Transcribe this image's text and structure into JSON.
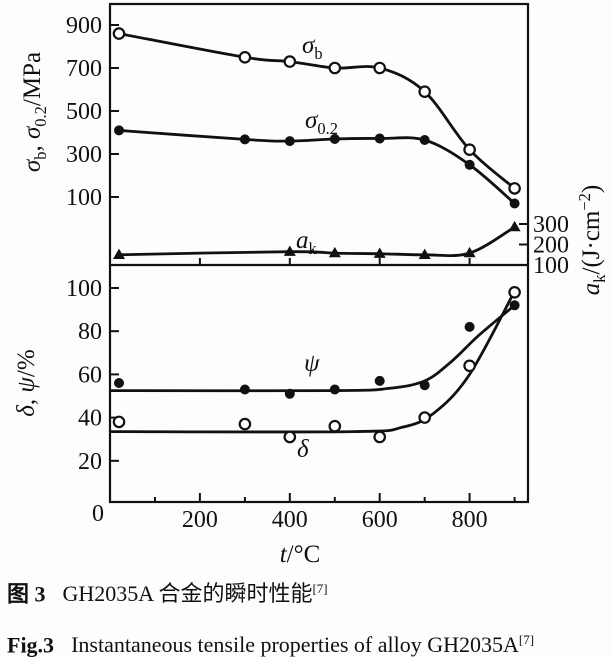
{
  "figure": {
    "caption_cn": {
      "label": "图 3",
      "text": "GH2035A 合金的瞬时性能",
      "ref": "[7]"
    },
    "caption_en": {
      "label": "Fig.3",
      "text": "Instantaneous tensile properties of alloy GH2035A",
      "ref": "[7]"
    },
    "ink_color": "#111111",
    "paper_color": "#fdfdfd"
  },
  "chart_data": [
    {
      "type": "line",
      "panel": "top",
      "xlabel_parts": [
        [
          "t",
          "i"
        ],
        [
          "/°C",
          "n"
        ]
      ],
      "ylabel_parts": [
        [
          "σ",
          "i"
        ],
        [
          "b",
          "sub"
        ],
        [
          ", ",
          "n"
        ],
        [
          "σ",
          "i"
        ],
        [
          "0.2",
          "sub"
        ],
        [
          "/MPa",
          "n"
        ]
      ],
      "ylabel_right_parts": [
        [
          "a",
          "i"
        ],
        [
          "k",
          "sub"
        ],
        [
          "/(J·cm",
          "n"
        ],
        [
          "−2",
          "sup"
        ],
        [
          ")",
          "n"
        ]
      ],
      "xlim": [
        0,
        930
      ],
      "xticks": [
        200,
        400,
        600,
        800
      ],
      "xticks_minor": [
        100,
        300,
        500,
        700,
        900
      ],
      "yticks_left": [
        900,
        700,
        500,
        300,
        100
      ],
      "ylim_left": [
        0,
        1000
      ],
      "yticks_right": [
        300,
        200,
        100
      ],
      "ylim_right": [
        100,
        320
      ],
      "grid": false,
      "legend": "inline-labels",
      "series": [
        {
          "id": "sigma-b",
          "name_parts": [
            [
              "σ",
              "i"
            ],
            [
              "b",
              "sub"
            ]
          ],
          "axis": "mpa",
          "marker": "open-circle",
          "x": [
            20,
            300,
            400,
            500,
            600,
            700,
            800,
            900
          ],
          "values": [
            860,
            750,
            730,
            700,
            700,
            590,
            320,
            140
          ]
        },
        {
          "id": "sigma-0-2",
          "name_parts": [
            [
              "σ",
              "i"
            ],
            [
              "0.2",
              "sub"
            ]
          ],
          "axis": "mpa",
          "marker": "filled-circle",
          "x": [
            20,
            300,
            400,
            500,
            600,
            700,
            800,
            900
          ],
          "values": [
            410,
            368,
            360,
            370,
            372,
            365,
            250,
            70
          ]
        },
        {
          "id": "a-k",
          "name_parts": [
            [
              "a",
              "i"
            ],
            [
              "k",
              "sub"
            ]
          ],
          "axis": "ak",
          "marker": "filled-triangle",
          "x": [
            20,
            400,
            500,
            600,
            700,
            800,
            900
          ],
          "values": [
            150,
            165,
            158,
            155,
            150,
            158,
            285
          ]
        }
      ]
    },
    {
      "type": "line",
      "panel": "bottom",
      "ylabel_parts": [
        [
          "δ",
          "i"
        ],
        [
          ", ",
          "n"
        ],
        [
          "ψ",
          "i"
        ],
        [
          "/%",
          "n"
        ]
      ],
      "yticks_left": [
        100,
        80,
        60,
        40,
        20
      ],
      "ylim_left": [
        0,
        110
      ],
      "origin_label": "0",
      "grid": false,
      "legend": "inline-labels",
      "series": [
        {
          "id": "psi",
          "name_parts": [
            [
              "ψ",
              "i"
            ]
          ],
          "axis": "pct",
          "marker": "filled-circle",
          "x": [
            20,
            300,
            400,
            500,
            600,
            700,
            800,
            900
          ],
          "values": [
            56,
            53,
            51,
            53,
            57,
            55,
            82,
            92
          ],
          "trend": [
            [
              0,
              52.5
            ],
            [
              500,
              52.5
            ],
            [
              620,
              53.5
            ],
            [
              700,
              57
            ],
            [
              760,
              66
            ],
            [
              820,
              78
            ],
            [
              900,
              92
            ]
          ]
        },
        {
          "id": "delta",
          "name_parts": [
            [
              "δ",
              "i"
            ]
          ],
          "axis": "pct",
          "marker": "open-circle",
          "x": [
            20,
            300,
            400,
            500,
            600,
            700,
            800,
            900
          ],
          "values": [
            38,
            37,
            31,
            36,
            31,
            40,
            64,
            98
          ],
          "trend": [
            [
              0,
              33.5
            ],
            [
              540,
              33.5
            ],
            [
              650,
              35.5
            ],
            [
              720,
              42
            ],
            [
              800,
              60
            ],
            [
              900,
              98.5
            ]
          ]
        }
      ]
    }
  ]
}
